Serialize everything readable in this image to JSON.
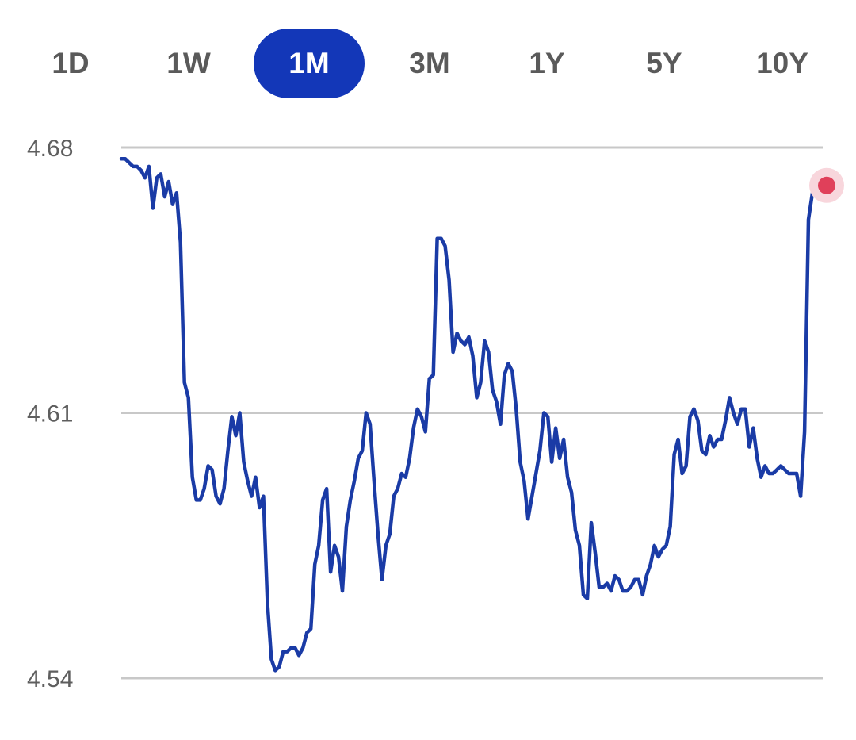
{
  "range_tabs": [
    {
      "id": "1d",
      "label": "1D",
      "active": false
    },
    {
      "id": "1w",
      "label": "1W",
      "active": false
    },
    {
      "id": "1m",
      "label": "1M",
      "active": true
    },
    {
      "id": "3m",
      "label": "3M",
      "active": false
    },
    {
      "id": "1y",
      "label": "1Y",
      "active": false
    },
    {
      "id": "5y",
      "label": "5Y",
      "active": false
    },
    {
      "id": "10y",
      "label": "10Y",
      "active": false
    }
  ],
  "colors": {
    "accent": "#1337b8",
    "line": "#1a3ba6",
    "gridline": "#c8c8c8",
    "current_point": "#e0405a",
    "current_point_halo": "#f8d6dc",
    "tab_text": "#5a5a5a",
    "tab_text_active": "#ffffff"
  },
  "chart_data": {
    "type": "line",
    "title": "",
    "xlabel": "",
    "ylabel": "",
    "ylim": [
      4.54,
      4.68
    ],
    "y_ticks": [
      4.68,
      4.61,
      4.54
    ],
    "y_tick_labels": [
      "4.68",
      "4.61",
      "4.54"
    ],
    "grid": true,
    "current_marker": true,
    "series": [
      {
        "values": [
          4.677,
          4.677,
          4.676,
          4.675,
          4.675,
          4.674,
          4.672,
          4.675,
          4.664,
          4.672,
          4.673,
          4.667,
          4.671,
          4.665,
          4.668,
          4.655,
          4.618,
          4.614,
          4.593,
          4.587,
          4.587,
          4.59,
          4.596,
          4.595,
          4.588,
          4.586,
          4.59,
          4.6,
          4.609,
          4.604,
          4.61,
          4.597,
          4.592,
          4.588,
          4.593,
          4.585,
          4.588,
          4.56,
          4.545,
          4.542,
          4.543,
          4.547,
          4.547,
          4.548,
          4.548,
          4.546,
          4.548,
          4.552,
          4.553,
          4.57,
          4.575,
          4.587,
          4.59,
          4.568,
          4.575,
          4.572,
          4.563,
          4.58,
          4.587,
          4.592,
          4.598,
          4.6,
          4.61,
          4.607,
          4.592,
          4.578,
          4.566,
          4.575,
          4.578,
          4.588,
          4.59,
          4.594,
          4.593,
          4.598,
          4.606,
          4.611,
          4.609,
          4.605,
          4.619,
          4.62,
          4.656,
          4.656,
          4.654,
          4.645,
          4.626,
          4.631,
          4.629,
          4.628,
          4.63,
          4.625,
          4.614,
          4.618,
          4.629,
          4.626,
          4.616,
          4.613,
          4.607,
          4.62,
          4.623,
          4.621,
          4.611,
          4.597,
          4.592,
          4.582,
          4.588,
          4.594,
          4.6,
          4.61,
          4.609,
          4.597,
          4.606,
          4.598,
          4.603,
          4.593,
          4.589,
          4.579,
          4.575,
          4.562,
          4.561,
          4.581,
          4.573,
          4.564,
          4.564,
          4.565,
          4.563,
          4.567,
          4.566,
          4.563,
          4.563,
          4.564,
          4.566,
          4.566,
          4.562,
          4.567,
          4.57,
          4.575,
          4.572,
          4.574,
          4.575,
          4.58,
          4.599,
          4.603,
          4.594,
          4.596,
          4.609,
          4.611,
          4.608,
          4.6,
          4.599,
          4.604,
          4.601,
          4.603,
          4.603,
          4.608,
          4.614,
          4.61,
          4.607,
          4.611,
          4.611,
          4.601,
          4.606,
          4.598,
          4.593,
          4.596,
          4.594,
          4.594,
          4.595,
          4.596,
          4.595,
          4.594,
          4.594,
          4.594,
          4.588,
          4.605,
          4.661,
          4.668,
          4.67
        ]
      }
    ]
  }
}
